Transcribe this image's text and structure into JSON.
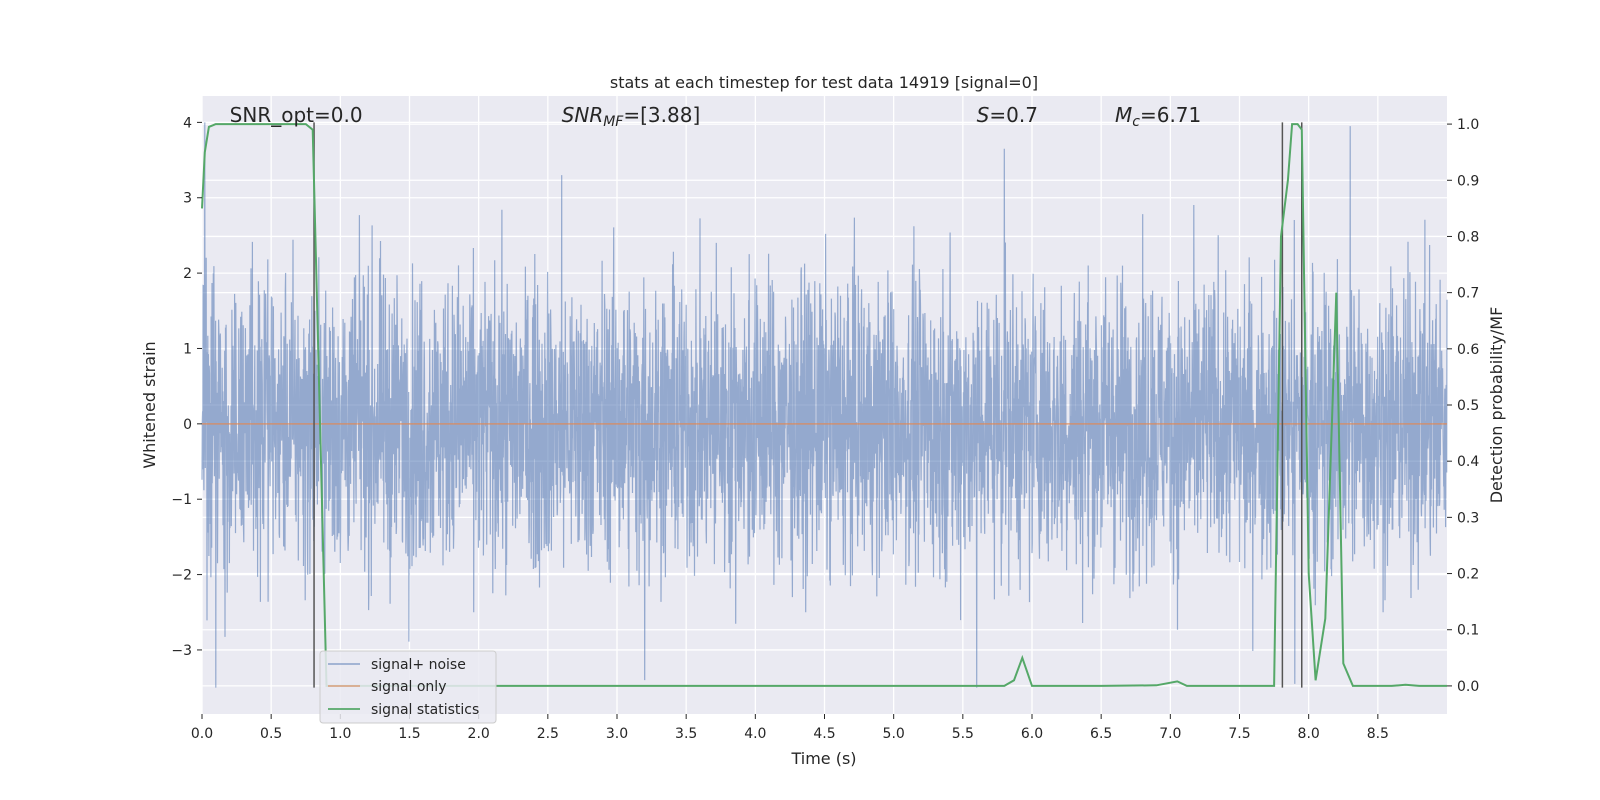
{
  "chart_data": {
    "type": "line",
    "title": "stats at each timestep for test data 14919 [signal=0]",
    "xlabel": "Time (s)",
    "ylabel_left": "Whitened strain",
    "ylabel_right": "Detection probability/MF",
    "xlim": [
      0,
      9.0
    ],
    "ylim_left": [
      -3.85,
      4.35
    ],
    "ylim_right": [
      -0.05,
      1.05
    ],
    "x_ticks": [
      0.0,
      0.5,
      1.0,
      1.5,
      2.0,
      2.5,
      3.0,
      3.5,
      4.0,
      4.5,
      5.0,
      5.5,
      6.0,
      6.5,
      7.0,
      7.5,
      8.0,
      8.5
    ],
    "x_tick_labels": [
      "0.0",
      "0.5",
      "1.0",
      "1.5",
      "2.0",
      "2.5",
      "3.0",
      "3.5",
      "4.0",
      "4.5",
      "5.0",
      "5.5",
      "6.0",
      "6.5",
      "7.0",
      "7.5",
      "8.0",
      "8.5"
    ],
    "y_left_ticks": [
      4,
      3,
      2,
      1,
      0,
      -1,
      -2,
      -3
    ],
    "y_left_tick_labels": [
      "4",
      "3",
      "2",
      "1",
      "0",
      "−1",
      "−2",
      "−3"
    ],
    "y_right_ticks": [
      1.0,
      0.9,
      0.8,
      0.7,
      0.6,
      0.5,
      0.4,
      0.3,
      0.2,
      0.1,
      0.0
    ],
    "y_right_tick_labels": [
      "1.0",
      "0.9",
      "0.8",
      "0.7",
      "0.6",
      "0.5",
      "0.4",
      "0.3",
      "0.2",
      "0.1",
      "0.0"
    ],
    "grid": true,
    "legend_position": "lower-left",
    "annotations": [
      {
        "text": "SNR_opt=0.0",
        "x": 0.2,
        "y": 4.1
      },
      {
        "text": "SNR_MF=[3.88]",
        "x": 2.6,
        "y": 4.1
      },
      {
        "text": "S=0.7",
        "x": 5.6,
        "y": 4.1
      },
      {
        "text": "M_c=6.71",
        "x": 6.6,
        "y": 4.1
      }
    ],
    "series": [
      {
        "name": "signal+ noise",
        "axis": "left",
        "color": "#4c72b0",
        "style": "noise",
        "amplitude_range": [
          -3.5,
          4.0
        ],
        "peaks": [
          {
            "x": 0.02,
            "y": 4.0
          },
          {
            "x": 2.6,
            "y": 3.3
          },
          {
            "x": 5.8,
            "y": 3.65
          },
          {
            "x": 8.3,
            "y": 3.95
          },
          {
            "x": 0.1,
            "y": -3.5
          },
          {
            "x": 3.2,
            "y": -3.4
          },
          {
            "x": 5.6,
            "y": -3.5
          },
          {
            "x": 7.9,
            "y": -3.45
          }
        ]
      },
      {
        "name": "signal only",
        "axis": "left",
        "color": "#dd8452",
        "x": [
          0.0,
          9.0
        ],
        "y": [
          0.0,
          0.0
        ]
      },
      {
        "name": "signal statistics",
        "axis": "right",
        "color": "#55a868",
        "x": [
          0.0,
          0.02,
          0.05,
          0.1,
          0.2,
          0.5,
          0.75,
          0.8,
          0.83,
          0.9,
          1.0,
          2.0,
          3.0,
          4.0,
          5.0,
          5.8,
          5.87,
          5.93,
          6.0,
          6.5,
          6.9,
          7.05,
          7.12,
          7.5,
          7.75,
          7.8,
          7.85,
          7.88,
          7.92,
          7.95,
          8.0,
          8.05,
          8.12,
          8.2,
          8.25,
          8.32,
          8.6,
          8.7,
          8.8,
          9.0
        ],
        "y": [
          0.85,
          0.95,
          0.995,
          1.0,
          1.0,
          1.0,
          1.0,
          0.99,
          0.7,
          0.0,
          0.0,
          0.0,
          0.0,
          0.0,
          0.0,
          0.0,
          0.01,
          0.05,
          0.0,
          0.0,
          0.001,
          0.008,
          0.0,
          0.0,
          0.0,
          0.8,
          0.9,
          1.0,
          1.0,
          0.99,
          0.2,
          0.01,
          0.12,
          0.7,
          0.04,
          0.0,
          0.0,
          0.002,
          0.0,
          0.0
        ]
      }
    ],
    "vertical_markers": [
      {
        "x": 0.81,
        "y_range": [
          -3.5,
          4.0
        ],
        "color": "#555555"
      },
      {
        "x": 7.81,
        "y_range": [
          -3.5,
          4.0
        ],
        "color": "#555555"
      },
      {
        "x": 7.95,
        "y_range": [
          -3.5,
          4.0
        ],
        "color": "#555555"
      }
    ]
  }
}
